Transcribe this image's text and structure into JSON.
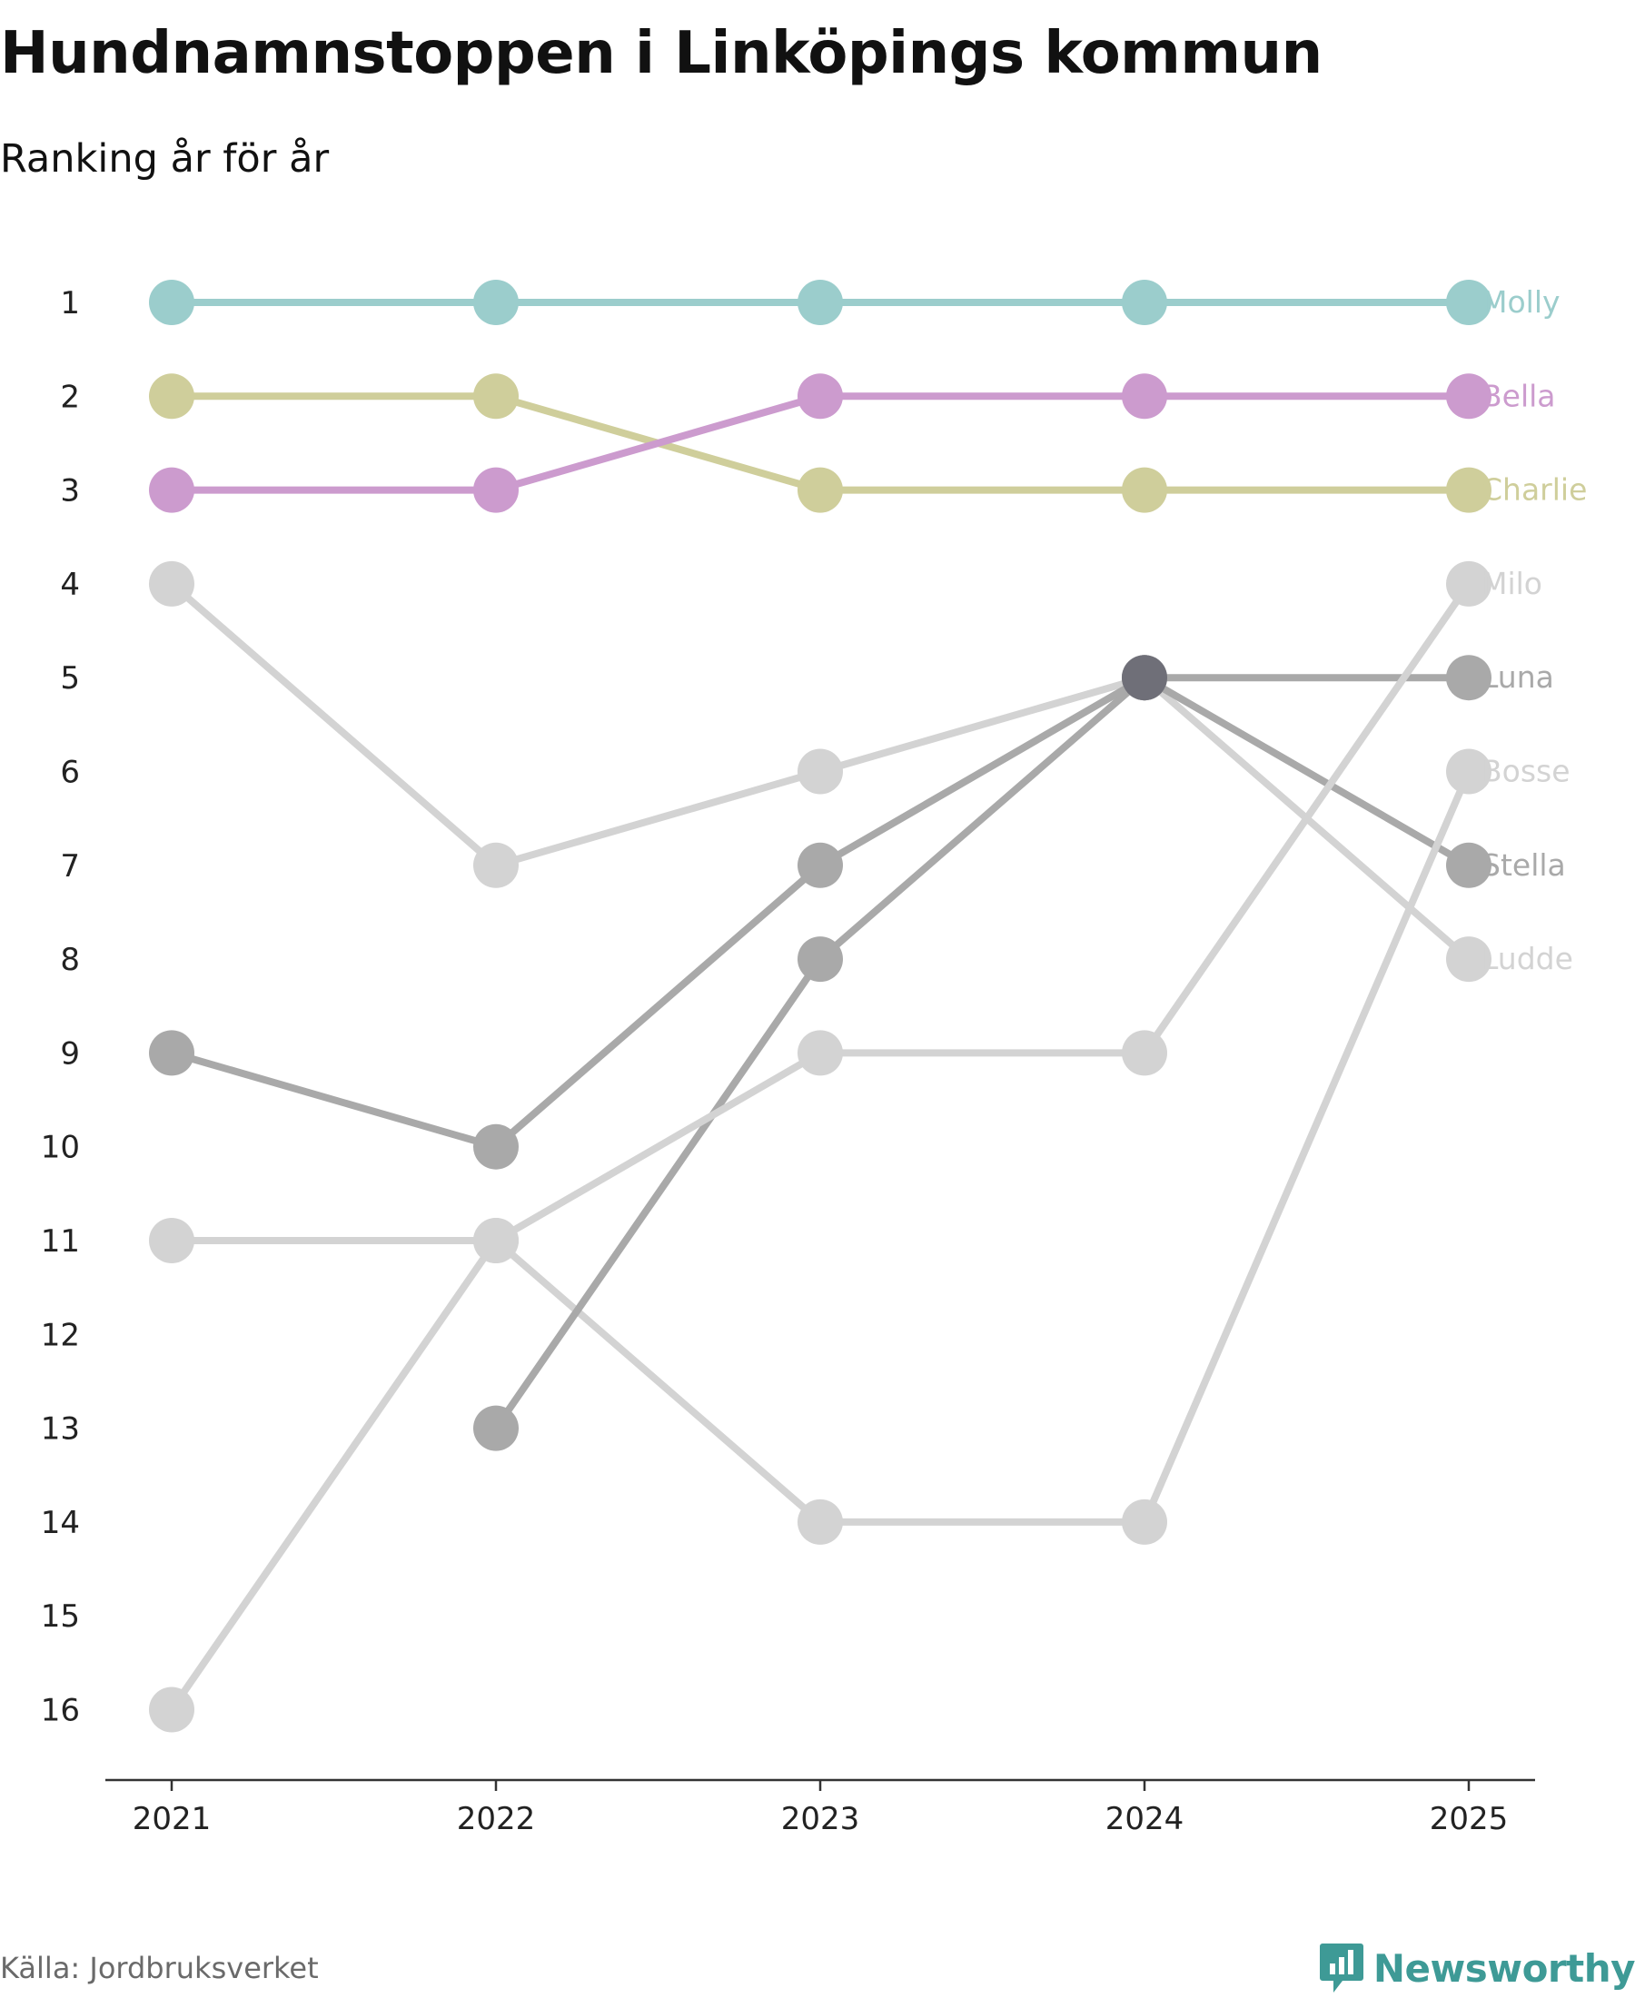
{
  "header": {
    "title": "Hundnamnstoppen i Linköpings kommun",
    "subtitle": "Ranking år för år"
  },
  "footer": {
    "source": "Källa: Jordbruksverket",
    "brand": "Newsworthy",
    "brand_icon": "newsworthy-logo-icon",
    "brand_color": "#3e9a96"
  },
  "chart_data": {
    "type": "line",
    "title": "Hundnamnstoppen i Linköpings kommun",
    "subtitle": "Ranking år för år",
    "xlabel": "",
    "ylabel": "",
    "categories": [
      "2021",
      "2022",
      "2023",
      "2024",
      "2025"
    ],
    "y_ticks": [
      "1",
      "2",
      "3",
      "4",
      "5",
      "6",
      "7",
      "8",
      "9",
      "10",
      "11",
      "12",
      "13",
      "14",
      "15",
      "16"
    ],
    "ylim": [
      1,
      16
    ],
    "y_inverted": true,
    "grid": false,
    "series": [
      {
        "name": "Molly",
        "color": "#9bcdcc",
        "values": [
          1,
          1,
          1,
          1,
          1
        ]
      },
      {
        "name": "Bella",
        "color": "#cc9bce",
        "values": [
          3,
          3,
          2,
          2,
          2
        ]
      },
      {
        "name": "Charlie",
        "color": "#cfce9b",
        "values": [
          2,
          2,
          3,
          3,
          3
        ]
      },
      {
        "name": "Milo",
        "color": "#d3d3d3",
        "values": [
          16,
          11,
          9,
          9,
          4
        ]
      },
      {
        "name": "Luna",
        "color": "#a9a9a9",
        "values": [
          null,
          13,
          8,
          5,
          5
        ]
      },
      {
        "name": "Bosse",
        "color": "#d3d3d3",
        "values": [
          11,
          11,
          14,
          14,
          6
        ]
      },
      {
        "name": "Stella",
        "color": "#a9a9a9",
        "values": [
          9,
          10,
          7,
          5,
          7
        ]
      },
      {
        "name": "Ludde",
        "color": "#d3d3d3",
        "values": [
          4,
          7,
          6,
          5,
          8
        ]
      }
    ],
    "overlap_marker_color": "#6f6f78"
  }
}
